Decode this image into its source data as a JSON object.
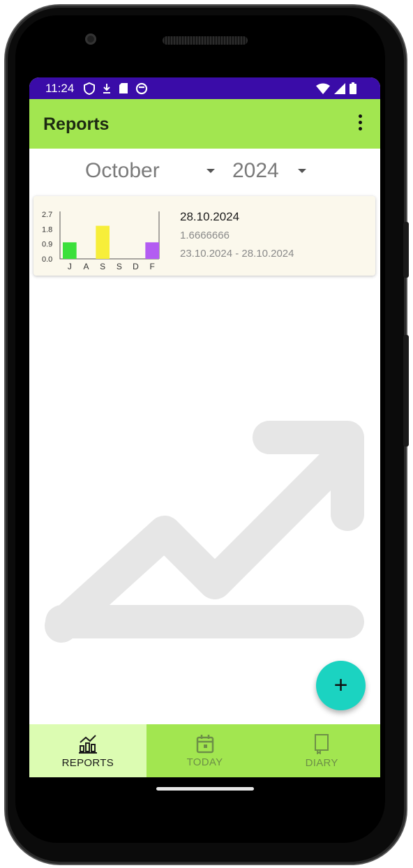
{
  "status_bar": {
    "time": "11:24",
    "left_icons": [
      "shield-icon",
      "download-icon",
      "sd-card-icon",
      "sync-icon"
    ],
    "right_icons": [
      "wifi-icon",
      "signal-icon",
      "battery-icon"
    ],
    "color": "#3a0ca8"
  },
  "app_bar": {
    "title": "Reports",
    "overflow_icon": "more-vert-icon",
    "color": "#a2e650"
  },
  "filters": {
    "month": "October",
    "year": "2024"
  },
  "report_card": {
    "date": "28.10.2024",
    "value": "1.6666666",
    "range": "23.10.2024 - 28.10.2024"
  },
  "chart_data": {
    "type": "bar",
    "categories": [
      "J",
      "A",
      "S",
      "S",
      "D",
      "F"
    ],
    "values": [
      1,
      0,
      2,
      0,
      0,
      1
    ],
    "yticks": [
      "2.7",
      "1.8",
      "0.9",
      "0.0"
    ],
    "ylim": [
      0,
      2.7
    ],
    "colors": [
      "#3be03b",
      "#3be03b",
      "#f7ee3a",
      "#f7ee3a",
      "#b35cf2",
      "#b35cf2"
    ]
  },
  "fab": {
    "label": "+",
    "color": "#1bd3c1"
  },
  "bottom_nav": {
    "items": [
      {
        "label": "REPORTS",
        "icon": "chart-icon",
        "active": true
      },
      {
        "label": "TODAY",
        "icon": "calendar-icon",
        "active": false
      },
      {
        "label": "DIARY",
        "icon": "notebook-icon",
        "active": false
      }
    ]
  }
}
